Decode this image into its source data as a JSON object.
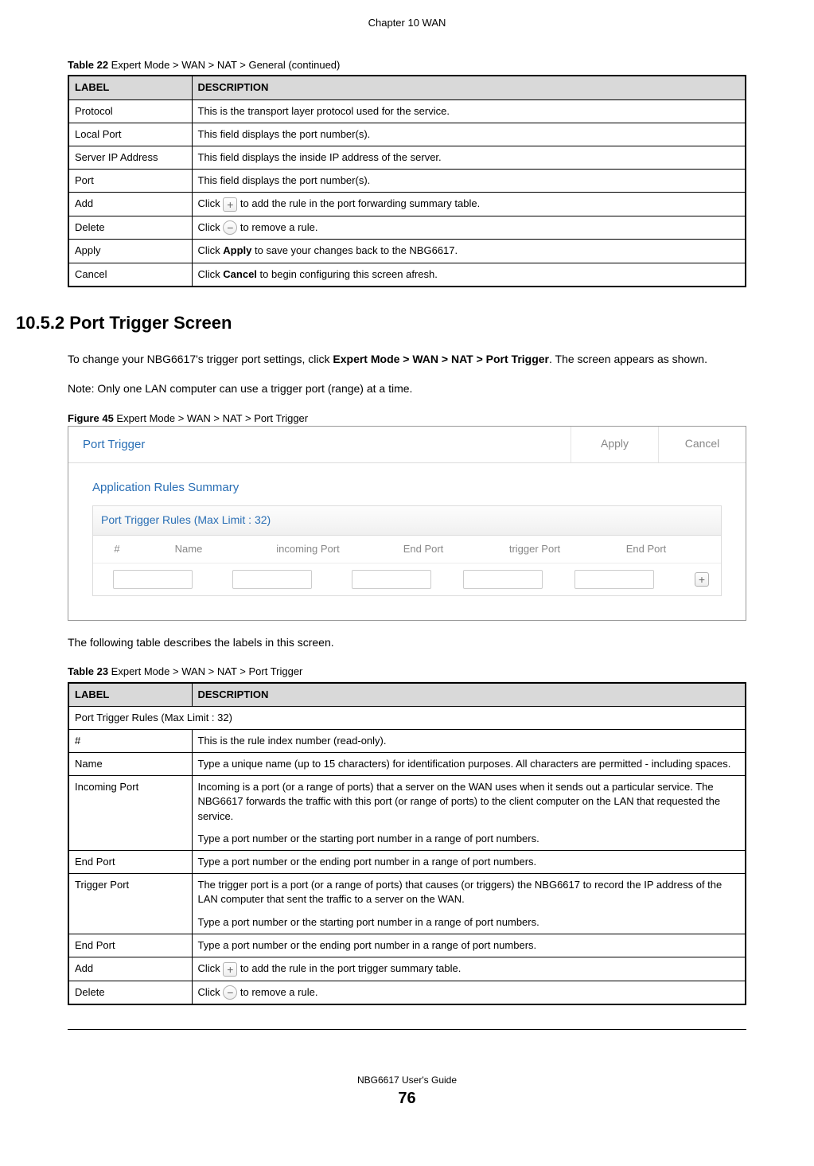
{
  "chapter_header": "Chapter 10 WAN",
  "table22": {
    "caption_num": "Table 22",
    "caption_text": "   Expert Mode > WAN > NAT > General (continued)",
    "headers": [
      "LABEL",
      "DESCRIPTION"
    ],
    "rows": [
      {
        "label": "Protocol",
        "desc": "This is the transport layer protocol used for the service."
      },
      {
        "label": "Local Port",
        "desc": "This field displays the port number(s)."
      },
      {
        "label": "Server IP Address",
        "desc": "This field displays the inside IP address of the server."
      },
      {
        "label": "Port",
        "desc": "This field displays the port number(s)."
      },
      {
        "label": "Add",
        "desc_pre": "Click ",
        "icon": "plus",
        "desc_post": " to add the rule in the port forwarding summary table."
      },
      {
        "label": "Delete",
        "desc_pre": "Click ",
        "icon": "minus",
        "desc_post": "  to remove a rule."
      },
      {
        "label": "Apply",
        "desc_bold": "Apply",
        "desc_pre": "Click ",
        "desc_post": " to save your changes back to the NBG6617."
      },
      {
        "label": "Cancel",
        "desc_bold": "Cancel",
        "desc_pre": "Click ",
        "desc_post": " to begin configuring this screen afresh."
      }
    ]
  },
  "section": {
    "heading": "10.5.2  Port Trigger Screen",
    "intro_pre": "To change your NBG6617's trigger port settings, click ",
    "intro_bold": "Expert Mode > WAN > NAT > Port Trigger",
    "intro_post": ". The screen appears as shown.",
    "note": "Note: Only one LAN computer can use a trigger port (range) at a time.",
    "figure_num": "Figure 45",
    "figure_text": "   Expert Mode > WAN > NAT > Port Trigger",
    "figure_ui": {
      "title": "Port Trigger",
      "apply_btn": "Apply",
      "cancel_btn": "Cancel",
      "subtitle": "Application Rules Summary",
      "rules_header": "Port Trigger Rules (Max Limit : 32)",
      "cols": {
        "hash": "#",
        "name": "Name",
        "incoming": "incoming Port",
        "end1": "End Port",
        "trigger": "trigger Port",
        "end2": "End Port"
      }
    },
    "table_intro": "The following table describes the labels in this screen."
  },
  "table23": {
    "caption_num": "Table 23",
    "caption_text": "   Expert Mode > WAN > NAT > Port Trigger",
    "headers": [
      "LABEL",
      "DESCRIPTION"
    ],
    "spanrow": "Port Trigger Rules (Max Limit : 32)",
    "rows": [
      {
        "label": "#",
        "desc": "This is the rule index number (read-only)."
      },
      {
        "label": "Name",
        "desc": "Type a unique name (up to 15 characters) for identification purposes. All characters are permitted - including spaces."
      },
      {
        "label": "Incoming Port",
        "desc_p1": "Incoming is a port (or a range of ports) that a server on the WAN uses when it sends out a particular service. The NBG6617 forwards the traffic with this port (or range of ports) to the client computer on the LAN that requested the service.",
        "desc_p2": "Type a port number or the starting port number in a range of port numbers."
      },
      {
        "label": "End Port",
        "desc": "Type a port number or the ending port number in a range of port numbers."
      },
      {
        "label": "Trigger Port",
        "desc_p1": "The trigger port is a port (or a range of ports) that causes (or triggers) the NBG6617 to record the IP address of the LAN computer that sent the traffic to a server on the WAN.",
        "desc_p2": "Type a port number or the starting port number in a range of port numbers."
      },
      {
        "label": "End Port",
        "desc": "Type a port number or the ending port number in a range of port numbers."
      },
      {
        "label": "Add",
        "desc_pre": "Click ",
        "icon": "plus",
        "desc_post": " to add the rule in the port trigger summary table."
      },
      {
        "label": "Delete",
        "desc_pre": "Click ",
        "icon": "minus",
        "desc_post": "  to remove a rule."
      }
    ]
  },
  "footer": {
    "guide": "NBG6617 User's Guide",
    "page": "76"
  }
}
